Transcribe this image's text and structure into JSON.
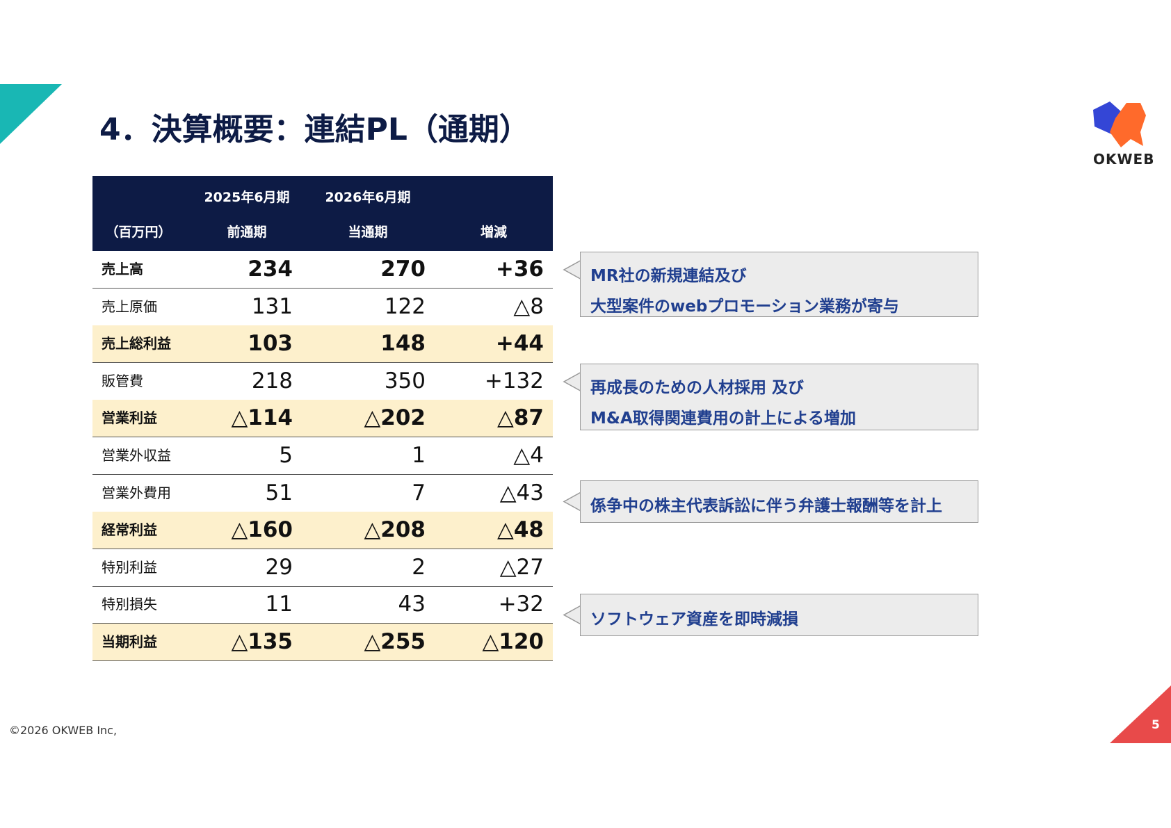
{
  "header": {
    "title": "4．決算概要：連結PL（通期）",
    "logo": "OKWEB"
  },
  "table": {
    "header_top": [
      "2025年6月期",
      "2026年6月期"
    ],
    "header": [
      "（百万円）",
      "前通期",
      "当通期",
      "増減"
    ],
    "rows": [
      [
        "売上高",
        "234",
        "270",
        "+36"
      ],
      [
        "売上原価",
        "131",
        "122",
        "△8"
      ],
      [
        "売上総利益",
        "103",
        "148",
        "+44"
      ],
      [
        "販管費",
        "218",
        "350",
        "+132"
      ],
      [
        "営業利益",
        "△114",
        "△202",
        "△87"
      ],
      [
        "営業外収益",
        "5",
        "1",
        "△4"
      ],
      [
        "営業外費用",
        "51",
        "7",
        "△43"
      ],
      [
        "経常利益",
        "△160",
        "△208",
        "△48"
      ],
      [
        "特別利益",
        "29",
        "2",
        "△27"
      ],
      [
        "特別損失",
        "11",
        "43",
        "+32"
      ],
      [
        "当期利益",
        "△135",
        "△255",
        "△120"
      ]
    ]
  },
  "callouts": [
    {
      "lines": [
        "MR社の新規連結及び",
        "大型案件のwebプロモーション業務が寄与"
      ]
    },
    {
      "lines": [
        "再成長のための人材採用 及び",
        "M&A取得関連費用の計上による増加"
      ]
    },
    {
      "lines": [
        "係争中の株主代表訴訟に伴う弁護士報酬等を計上"
      ]
    },
    {
      "lines": [
        "ソフトウェア資産を即時減損"
      ]
    }
  ],
  "footer": {
    "copyright": "©2026 OKWEB Inc,",
    "page": "5"
  }
}
